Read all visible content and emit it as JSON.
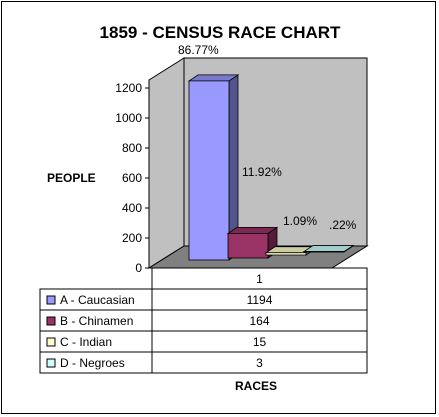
{
  "chart_data": {
    "type": "bar",
    "title": "1859 - CENSUS RACE CHART",
    "ylabel": "PEOPLE",
    "xlabel": "RACES",
    "categories": [
      "1"
    ],
    "ylim": [
      0,
      1200
    ],
    "yticks": [
      0,
      200,
      400,
      600,
      800,
      1000,
      1200
    ],
    "grid": false,
    "legend_placement": "table-left",
    "series": [
      {
        "name": "A - Caucasian",
        "values": [
          1194
        ],
        "percent_label": "86.77%",
        "color": "#9999ff"
      },
      {
        "name": "B - Chinamen",
        "values": [
          164
        ],
        "percent_label": "11.92%",
        "color": "#993366"
      },
      {
        "name": "C - Indian",
        "values": [
          15
        ],
        "percent_label": "1.09%",
        "color": "#ffffcc"
      },
      {
        "name": "D - Negroes",
        "values": [
          3
        ],
        "percent_label": ".22%",
        "color": "#ccffff"
      }
    ],
    "wall_color": "#c0c0c0",
    "floor_color": "#808080"
  }
}
